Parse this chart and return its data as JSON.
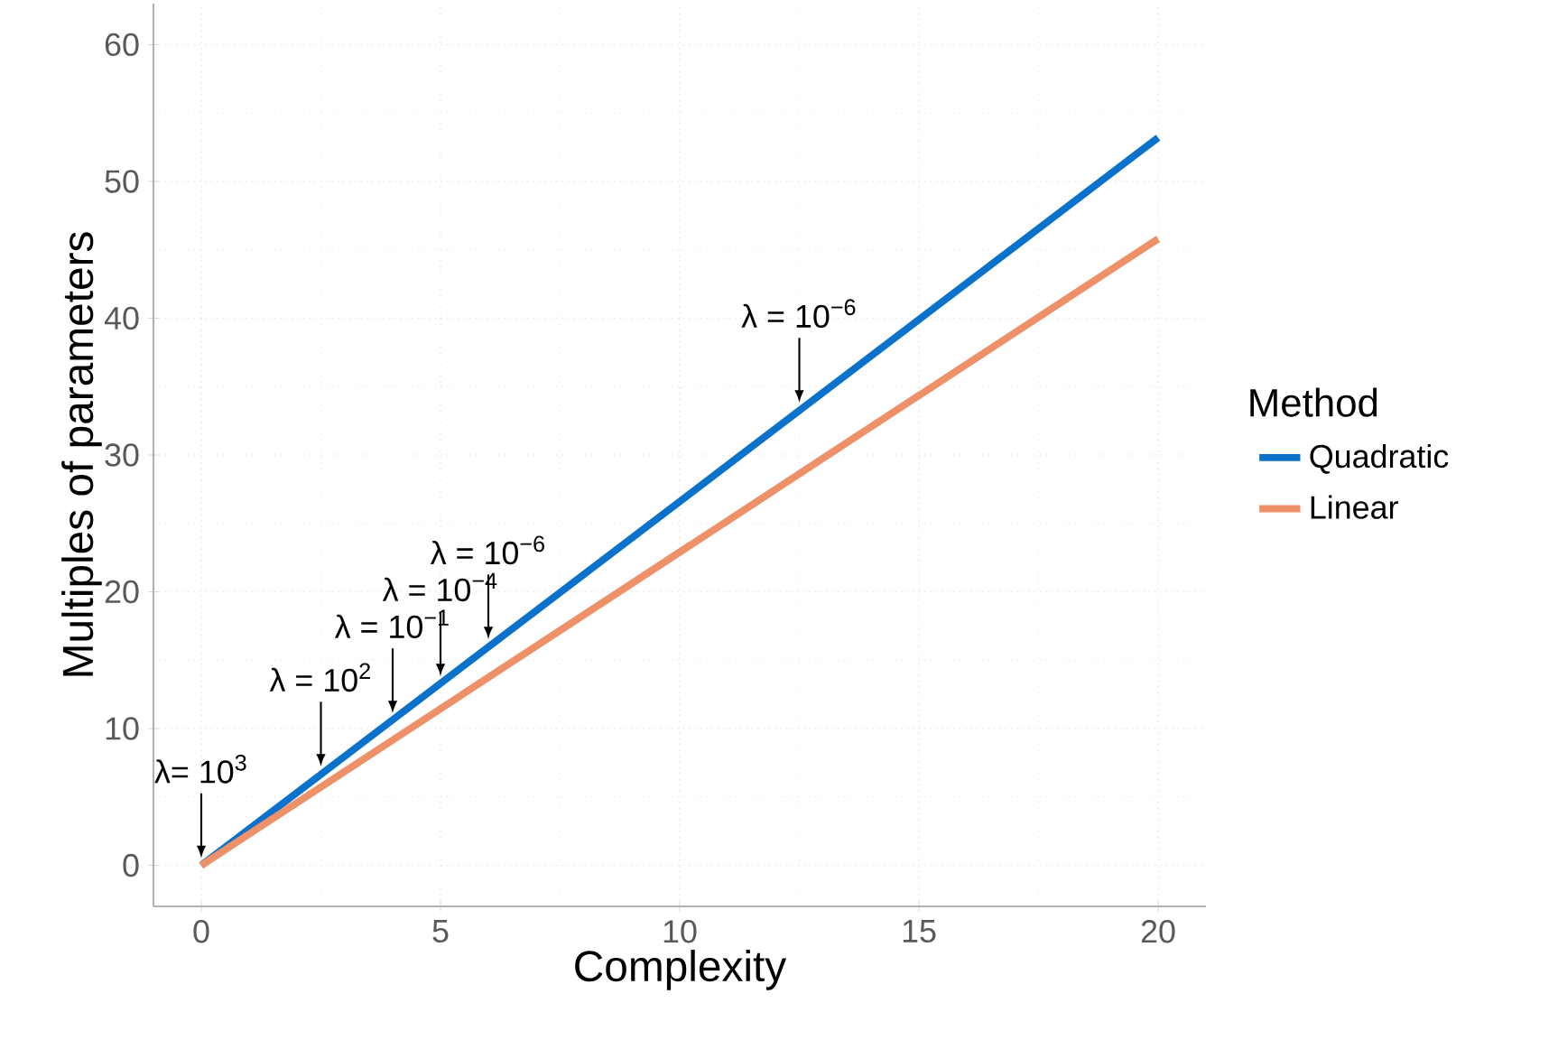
{
  "chart_data": {
    "type": "line",
    "xlabel": "Complexity",
    "ylabel": "Multiples of parameters",
    "legend_title": "Method",
    "x": [
      0,
      20
    ],
    "series": [
      {
        "name": "Quadratic",
        "color": "#0b72cc",
        "values": [
          0,
          53.2
        ]
      },
      {
        "name": "Linear",
        "color": "#ee9068",
        "values": [
          0,
          45.8
        ]
      }
    ],
    "xlim": [
      -1,
      21
    ],
    "ylim": [
      -3,
      63
    ],
    "xticks": [
      0,
      5,
      10,
      15,
      20
    ],
    "yticks": [
      0,
      10,
      20,
      30,
      40,
      50,
      60
    ],
    "grid": true,
    "legend": "right",
    "marker": "none",
    "line_style": "solid",
    "annotations": [
      {
        "text": "λ= 10$^{3}$",
        "x": 0,
        "y": 0
      },
      {
        "text": "λ = 10$^{2}$",
        "x": 2.5,
        "y": 6.7
      },
      {
        "text": "λ = 10$^{−1}$",
        "x": 4,
        "y": 10.6
      },
      {
        "text": "λ = 10$^{−4}$",
        "x": 5,
        "y": 13.3
      },
      {
        "text": "λ = 10$^{−6}$",
        "x": 6,
        "y": 16.0
      },
      {
        "text": "λ = 10$^{−6}$",
        "x": 12.5,
        "y": 33.3
      }
    ]
  }
}
